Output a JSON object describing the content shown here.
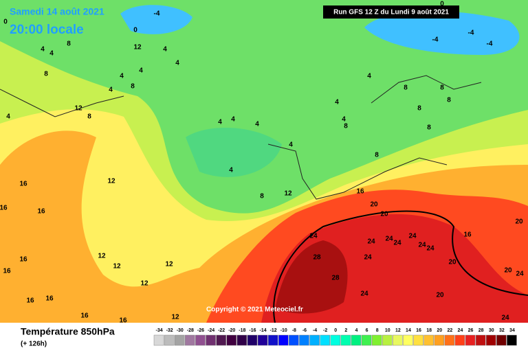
{
  "header": {
    "date": "Samedi 14 août 2021",
    "time": "20:00 locale"
  },
  "run": "Run GFS 12 Z du Lundi 9 août 2021",
  "copyright": "Copyright © 2021 Meteociel.fr",
  "legend": {
    "title": "Température 850hPa",
    "lead_time": "(+ 126h)",
    "scale": [
      {
        "value": -34,
        "color": "#d8d8d8"
      },
      {
        "value": -32,
        "color": "#bcbcbc"
      },
      {
        "value": -30,
        "color": "#a4a4a4"
      },
      {
        "value": -28,
        "color": "#a078a0"
      },
      {
        "value": -26,
        "color": "#905090"
      },
      {
        "value": -24,
        "color": "#703070"
      },
      {
        "value": -22,
        "color": "#501850"
      },
      {
        "value": -20,
        "color": "#400040"
      },
      {
        "value": -18,
        "color": "#300048"
      },
      {
        "value": -16,
        "color": "#200068"
      },
      {
        "value": -14,
        "color": "#200098"
      },
      {
        "value": -12,
        "color": "#1010c8"
      },
      {
        "value": -10,
        "color": "#0000ff"
      },
      {
        "value": -8,
        "color": "#0050ff"
      },
      {
        "value": -6,
        "color": "#0080ff"
      },
      {
        "value": -4,
        "color": "#00b0ff"
      },
      {
        "value": -2,
        "color": "#00e0ff"
      },
      {
        "value": 0,
        "color": "#00ffe0"
      },
      {
        "value": 2,
        "color": "#00ffb0"
      },
      {
        "value": 4,
        "color": "#00f080"
      },
      {
        "value": 6,
        "color": "#40f050"
      },
      {
        "value": 8,
        "color": "#80f030"
      },
      {
        "value": 10,
        "color": "#b8f040"
      },
      {
        "value": 12,
        "color": "#e8f860"
      },
      {
        "value": 14,
        "color": "#ffff60"
      },
      {
        "value": 16,
        "color": "#ffe040"
      },
      {
        "value": 18,
        "color": "#ffc030"
      },
      {
        "value": 20,
        "color": "#ffa020"
      },
      {
        "value": 22,
        "color": "#ff7018"
      },
      {
        "value": 24,
        "color": "#ff4018"
      },
      {
        "value": 26,
        "color": "#e82020"
      },
      {
        "value": 28,
        "color": "#c01010"
      },
      {
        "value": 30,
        "color": "#a00000"
      },
      {
        "value": 32,
        "color": "#700000"
      },
      {
        "value": 34,
        "color": "#000000"
      }
    ]
  },
  "map_labels": [
    -4,
    0,
    0,
    0,
    -4,
    -4,
    -4,
    8,
    4,
    4,
    12,
    4,
    4,
    8,
    4,
    4,
    8,
    4,
    4,
    8,
    8,
    4,
    12,
    8,
    8,
    8,
    4,
    4,
    4,
    4,
    4,
    8,
    8,
    4,
    8,
    4,
    12,
    16,
    8,
    12,
    16,
    20,
    20,
    16,
    16,
    20,
    24,
    24,
    24,
    24,
    24,
    24,
    24,
    16,
    12,
    28,
    24,
    20,
    16,
    12,
    12,
    16,
    20,
    24,
    28,
    12,
    24,
    20,
    16,
    16,
    16,
    16,
    12,
    24
  ]
}
